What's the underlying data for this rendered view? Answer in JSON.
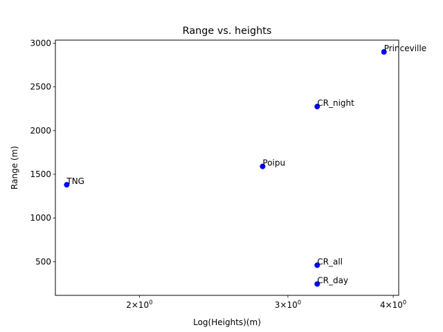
{
  "chart_data": {
    "type": "scatter",
    "title": "Range vs. heights",
    "xlabel": "Log(Heights)(m)",
    "ylabel": "Range (m)",
    "x_scale": "log",
    "xlim": [
      1.59,
      4.06
    ],
    "ylim": [
      115,
      3035
    ],
    "x_ticks": [
      {
        "value": 2,
        "base": "2",
        "sup": "0"
      },
      {
        "value": 3,
        "base": "3",
        "sup": "0"
      },
      {
        "value": 4,
        "base": "4",
        "sup": "0"
      }
    ],
    "y_ticks": [
      500,
      1000,
      1500,
      2000,
      2500,
      3000
    ],
    "grid": false,
    "marker_color": "#0000ff",
    "points": [
      {
        "label": "TNG",
        "x": 1.64,
        "y": 1380
      },
      {
        "label": "Poipu",
        "x": 2.8,
        "y": 1590
      },
      {
        "label": "CR_night",
        "x": 3.25,
        "y": 2275
      },
      {
        "label": "CR_all",
        "x": 3.25,
        "y": 460
      },
      {
        "label": "CR_day",
        "x": 3.25,
        "y": 245
      },
      {
        "label": "Princeville",
        "x": 3.9,
        "y": 2900
      }
    ]
  }
}
